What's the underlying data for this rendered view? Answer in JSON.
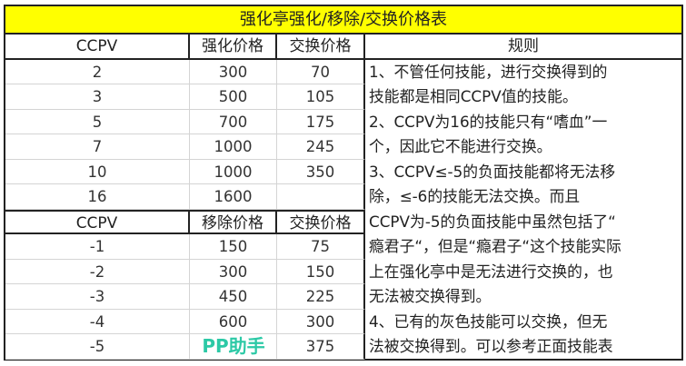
{
  "title": "强化亭强化/移除/交换价格表",
  "upgrade_table": {
    "headers": [
      "CCPV",
      "强化价格",
      "交换价格"
    ],
    "rows": [
      [
        "2",
        "300",
        "70"
      ],
      [
        "3",
        "500",
        "105"
      ],
      [
        "5",
        "700",
        "175"
      ],
      [
        "7",
        "1000",
        "245"
      ],
      [
        "10",
        "1000",
        "350"
      ],
      [
        "16",
        "1600",
        ""
      ]
    ]
  },
  "remove_table": {
    "headers": [
      "CCPV",
      "移除价格",
      "交换价格"
    ],
    "rows": [
      [
        "-1",
        "150",
        "75"
      ],
      [
        "-2",
        "300",
        "150"
      ],
      [
        "-3",
        "450",
        "225"
      ],
      [
        "-4",
        "600",
        "300"
      ],
      [
        "-5",
        "",
        "375"
      ]
    ]
  },
  "rules": {
    "header": "规则",
    "lines": [
      "1、不管任何技能，进行交换得到的",
      "技能都是相同CCPV值的技能。",
      "2、CCPV为16的技能只有“嗜血”一",
      "个，因此它不能进行交换。",
      "3、CCPV≤-5的负面技能都将无法移",
      "除，≤-6的技能无法交换。而且",
      "CCPV为-5的负面技能中虽然包括了“",
      "瘾君子“，但是“瘾君子“这个技能实际",
      "上在强化亭中是无法进行交换的，也",
      "无法被交换得到。",
      "4、已有的灰色技能可以交换，但无",
      "法被交换得到。可以参考正面技能表"
    ]
  },
  "watermark": "PP助手",
  "colors": {
    "title_bg": "#ffff00",
    "watermark": "#2cc9a6"
  }
}
